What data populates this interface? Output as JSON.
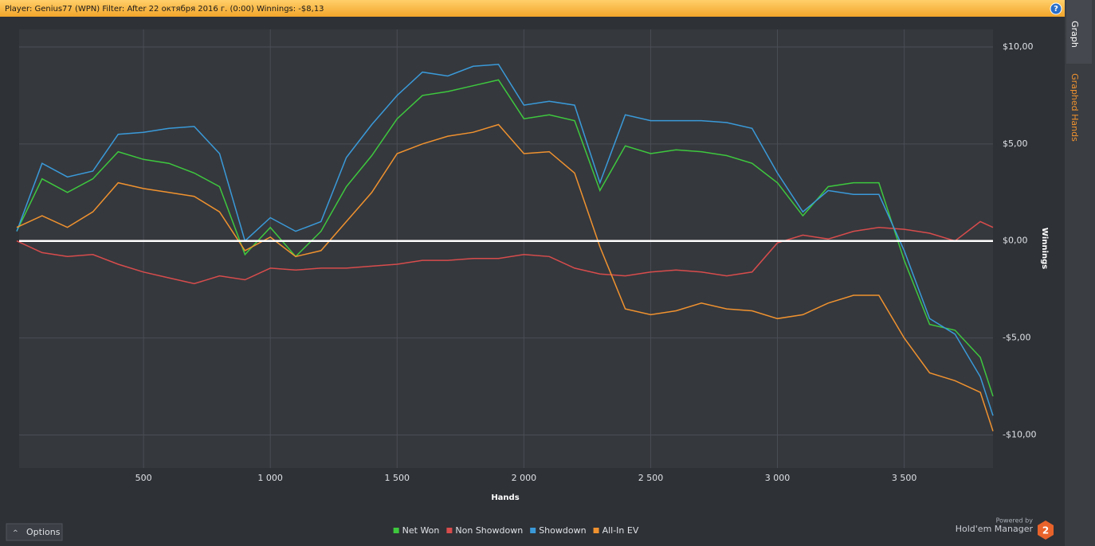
{
  "header": {
    "text": "Player: Genius77 (WPN) Filter: After 22 октября 2016 г. (0:00) Winnings: -$8,13",
    "help": "?"
  },
  "sidebar": {
    "tabs": [
      "Graph",
      "Graphed Hands"
    ]
  },
  "options": "Options",
  "branding": {
    "powered_by": "Powered by",
    "product": "Hold'em Manager",
    "logo": "2"
  },
  "chart_data": {
    "type": "line",
    "x_label": "Hands",
    "y_label": "Winnings",
    "x": [
      0,
      100,
      200,
      300,
      400,
      500,
      600,
      700,
      800,
      900,
      1000,
      1100,
      1200,
      1300,
      1400,
      1500,
      1600,
      1700,
      1800,
      1900,
      2000,
      2100,
      2200,
      2300,
      2400,
      2500,
      2600,
      2700,
      2800,
      2900,
      3000,
      3100,
      3200,
      3300,
      3400,
      3500,
      3600,
      3700,
      3800,
      3850
    ],
    "series": [
      {
        "name": "Net Won",
        "color": "#3ec83e",
        "values": [
          0.5,
          3.2,
          2.5,
          3.2,
          4.6,
          4.2,
          4.0,
          3.5,
          2.8,
          -0.7,
          0.7,
          -0.8,
          0.5,
          2.8,
          4.4,
          6.3,
          7.5,
          7.7,
          8.0,
          8.3,
          6.3,
          6.5,
          6.2,
          2.6,
          4.9,
          4.5,
          4.7,
          4.6,
          4.4,
          4.0,
          3.0,
          1.3,
          2.8,
          3.0,
          3.0,
          -1.0,
          -4.3,
          -4.6,
          -6.0,
          -8.0
        ]
      },
      {
        "name": "Non Showdown",
        "color": "#d84c4c",
        "values": [
          0,
          -0.6,
          -0.8,
          -0.7,
          -1.2,
          -1.6,
          -1.9,
          -2.2,
          -1.8,
          -2.0,
          -1.4,
          -1.5,
          -1.4,
          -1.4,
          -1.3,
          -1.2,
          -1.0,
          -1.0,
          -0.9,
          -0.9,
          -0.7,
          -0.8,
          -1.4,
          -1.7,
          -1.8,
          -1.6,
          -1.5,
          -1.6,
          -1.8,
          -1.6,
          -0.1,
          0.3,
          0.1,
          0.5,
          0.7,
          0.6,
          0.4,
          0.0,
          1.0,
          0.7
        ]
      },
      {
        "name": "Showdown",
        "color": "#3a9ad9",
        "values": [
          0.5,
          4.0,
          3.3,
          3.6,
          5.5,
          5.6,
          5.8,
          5.9,
          4.5,
          0,
          1.2,
          0.5,
          1.0,
          4.3,
          6.0,
          7.5,
          8.7,
          8.5,
          9.0,
          9.1,
          7.0,
          7.2,
          7.0,
          3.0,
          6.5,
          6.2,
          6.2,
          6.2,
          6.1,
          5.8,
          3.5,
          1.5,
          2.6,
          2.4,
          2.4,
          -0.5,
          -4.0,
          -4.8,
          -7.0,
          -9.0
        ]
      },
      {
        "name": "All-In EV",
        "color": "#f0922f",
        "values": [
          0.7,
          1.3,
          0.7,
          1.5,
          3.0,
          2.7,
          2.5,
          2.3,
          1.5,
          -0.5,
          0.2,
          -0.8,
          -0.5,
          1.0,
          2.5,
          4.5,
          5.0,
          5.4,
          5.6,
          6.0,
          4.5,
          4.6,
          3.5,
          -0.3,
          -3.5,
          -3.8,
          -3.6,
          -3.2,
          -3.5,
          -3.6,
          -4.0,
          -3.8,
          -3.2,
          -2.8,
          -2.8,
          -5.0,
          -6.8,
          -7.2,
          -7.8,
          -9.8
        ]
      }
    ],
    "xlim": [
      0,
      3850
    ],
    "xticks": [
      500,
      {
        "value": 1000,
        "label": "1 000"
      },
      {
        "value": 1500,
        "label": "1 500"
      },
      {
        "value": 2000,
        "label": "2 000"
      },
      {
        "value": 2500,
        "label": "2 500"
      },
      {
        "value": 3000,
        "label": "3 000"
      },
      {
        "value": 3500,
        "label": "3 500"
      }
    ],
    "ylim": [
      -11.7,
      10.9
    ],
    "yticks": [
      {
        "value": 10,
        "label": "$10,00"
      },
      {
        "value": 5,
        "label": "$5,00"
      },
      {
        "value": 0,
        "label": "$0,00"
      },
      {
        "value": -5,
        "label": "-$5,00"
      },
      {
        "value": -10,
        "label": "-$10,00"
      }
    ],
    "grid": true
  }
}
